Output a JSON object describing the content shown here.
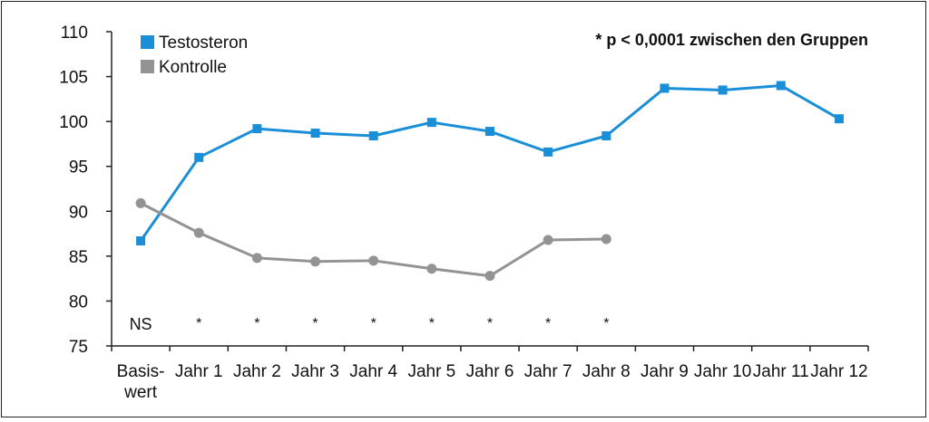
{
  "chart_data": {
    "type": "line",
    "title": "",
    "xlabel": "",
    "ylabel": "",
    "categories": [
      [
        "Basis-",
        "wert"
      ],
      [
        "Jahr 1"
      ],
      [
        "Jahr 2"
      ],
      [
        "Jahr 3"
      ],
      [
        "Jahr 4"
      ],
      [
        "Jahr 5"
      ],
      [
        "Jahr 6"
      ],
      [
        "Jahr 7"
      ],
      [
        "Jahr 8"
      ],
      [
        "Jahr 9"
      ],
      [
        "Jahr 10"
      ],
      [
        "Jahr 11"
      ],
      [
        "Jahr 12"
      ]
    ],
    "ylim": [
      75,
      110
    ],
    "yticks": [
      75,
      80,
      85,
      90,
      95,
      100,
      105,
      110
    ],
    "grid": false,
    "legend_position": "top-left",
    "series": [
      {
        "name": "Testosteron",
        "color": "#1a8fd8",
        "marker": "square",
        "values": [
          86.7,
          96.0,
          99.2,
          98.7,
          98.4,
          99.9,
          98.9,
          96.6,
          98.4,
          103.7,
          103.5,
          104.0,
          100.3
        ]
      },
      {
        "name": "Kontrolle",
        "color": "#939393",
        "marker": "circle",
        "values": [
          90.9,
          87.6,
          84.8,
          84.4,
          84.5,
          83.6,
          82.8,
          86.8,
          86.9,
          null,
          null,
          null,
          null
        ]
      }
    ],
    "annotations": {
      "significance_note": "* p < 0,0001 zwischen den Gruppen",
      "row_labels": [
        "NS",
        "*",
        "*",
        "*",
        "*",
        "*",
        "*",
        "*",
        "*"
      ]
    }
  }
}
